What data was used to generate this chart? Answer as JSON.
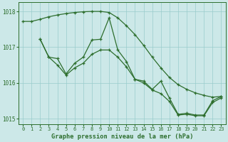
{
  "lineA_x": [
    0,
    1,
    2,
    3,
    4,
    5,
    6,
    7,
    8,
    9,
    10,
    11,
    12,
    13,
    14,
    15,
    16,
    17,
    18,
    19,
    20,
    21,
    22,
    23
  ],
  "lineA_y": [
    1017.72,
    1017.72,
    1017.78,
    1017.85,
    1017.9,
    1017.94,
    1017.97,
    1017.99,
    1018.0,
    1018.0,
    1017.97,
    1017.82,
    1017.6,
    1017.35,
    1017.05,
    1016.72,
    1016.42,
    1016.15,
    1015.95,
    1015.82,
    1015.72,
    1015.65,
    1015.6,
    1015.62
  ],
  "lineB_x": [
    2,
    3,
    4,
    5,
    6,
    7,
    8,
    9,
    10,
    11,
    12,
    13,
    14,
    15,
    16,
    17,
    18,
    19,
    20,
    21,
    22,
    23
  ],
  "lineB_y": [
    1017.22,
    1016.72,
    1016.68,
    1016.25,
    1016.55,
    1016.72,
    1017.2,
    1017.22,
    1017.82,
    1016.92,
    1016.6,
    1016.1,
    1016.05,
    1015.82,
    1016.05,
    1015.57,
    1015.12,
    1015.15,
    1015.1,
    1015.1,
    1015.5,
    1015.62
  ],
  "lineC_x": [
    2,
    3,
    4,
    5,
    6,
    7,
    8,
    9,
    10,
    11,
    12,
    13,
    14,
    15,
    16,
    17,
    18,
    19,
    20,
    21,
    22,
    23
  ],
  "lineC_y": [
    1017.22,
    1016.72,
    1016.5,
    1016.22,
    1016.42,
    1016.55,
    1016.8,
    1016.92,
    1016.92,
    1016.72,
    1016.45,
    1016.1,
    1016.0,
    1015.8,
    1015.7,
    1015.48,
    1015.1,
    1015.12,
    1015.08,
    1015.08,
    1015.45,
    1015.58
  ],
  "line_color": "#2d6e2d",
  "bg_color": "#cce8e8",
  "grid_color": "#99cccc",
  "xlabel": "Graphe pression niveau de la mer (hPa)",
  "xlabel_color": "#2d6e2d",
  "tick_color": "#2d6e2d",
  "ylim": [
    1014.85,
    1018.25
  ],
  "xlim": [
    -0.5,
    23.5
  ],
  "yticks": [
    1015,
    1016,
    1017,
    1018
  ],
  "xticks": [
    0,
    1,
    2,
    3,
    4,
    5,
    6,
    7,
    8,
    9,
    10,
    11,
    12,
    13,
    14,
    15,
    16,
    17,
    18,
    19,
    20,
    21,
    22,
    23
  ]
}
